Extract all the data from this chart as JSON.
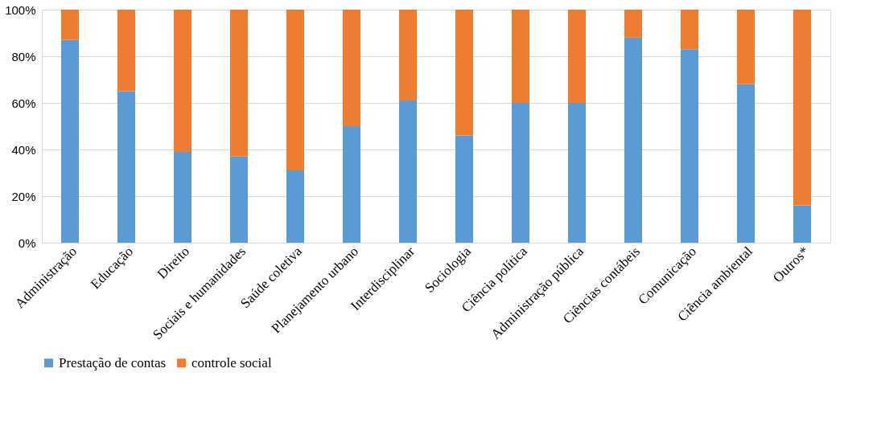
{
  "chart_data": {
    "type": "bar",
    "stacked": true,
    "categories": [
      "Administração",
      "Educação",
      "Direito",
      "Sociais e humanidades",
      "Saúde coletiva",
      "Planejamento urbano",
      "Interdisciplinar",
      "Sociologia",
      "Ciência política",
      "Administração pública",
      "Ciências contábeis",
      "Comunicação",
      "Ciência ambiental",
      "Outros*"
    ],
    "series": [
      {
        "name": "Prestação de contas",
        "color": "#5b9bd5",
        "values": [
          87,
          65,
          39,
          37,
          31,
          50,
          61,
          46,
          60,
          60,
          88,
          83,
          68,
          16
        ]
      },
      {
        "name": "controle social",
        "color": "#ed7d31",
        "values": [
          13,
          35,
          61,
          63,
          69,
          50,
          39,
          54,
          40,
          40,
          12,
          17,
          32,
          84
        ]
      }
    ],
    "ylim": [
      0,
      100
    ],
    "yticks": [
      {
        "value": 0,
        "label": "0%"
      },
      {
        "value": 20,
        "label": "20%"
      },
      {
        "value": 40,
        "label": "40%"
      },
      {
        "value": 60,
        "label": "60%"
      },
      {
        "value": 80,
        "label": "80%"
      },
      {
        "value": 100,
        "label": "100%"
      }
    ],
    "grid": "y",
    "legend": "bottom"
  }
}
